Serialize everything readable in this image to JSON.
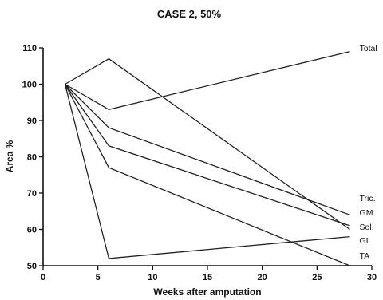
{
  "chart_data": {
    "type": "line",
    "title": "CASE 2, 50%",
    "xlabel": "Weeks after amputation",
    "ylabel": "Area %",
    "xlim": [
      0,
      30
    ],
    "ylim": [
      50,
      110
    ],
    "xticks": [
      0,
      5,
      10,
      15,
      20,
      25,
      30
    ],
    "yticks": [
      50,
      60,
      70,
      80,
      90,
      100,
      110
    ],
    "grid": false,
    "legend": "labels at line ends (right)",
    "series": [
      {
        "name": "Total",
        "x": [
          2,
          6,
          28
        ],
        "y": [
          100,
          93,
          109
        ]
      },
      {
        "name": "Tric.",
        "x": [
          2,
          6,
          28
        ],
        "y": [
          100,
          107,
          60
        ]
      },
      {
        "name": "GM",
        "x": [
          2,
          6,
          28
        ],
        "y": [
          100,
          88,
          64
        ]
      },
      {
        "name": "Sol.",
        "x": [
          2,
          6,
          28
        ],
        "y": [
          100,
          83,
          61
        ]
      },
      {
        "name": "GL",
        "x": [
          2,
          6,
          28
        ],
        "y": [
          100,
          52,
          58
        ]
      },
      {
        "name": "TA",
        "x": [
          2,
          6,
          28
        ],
        "y": [
          100,
          77,
          50
        ]
      }
    ]
  }
}
